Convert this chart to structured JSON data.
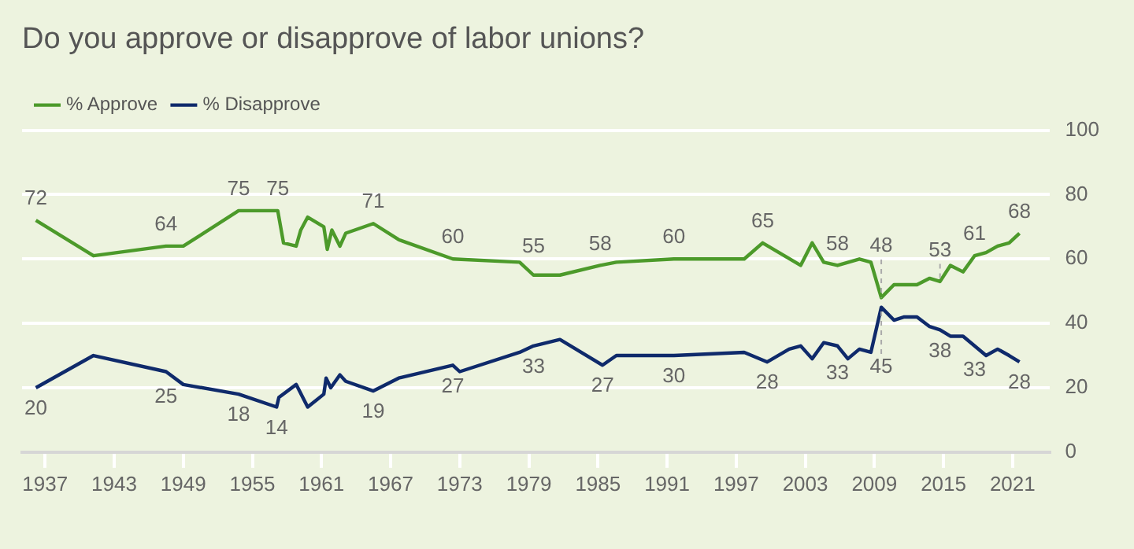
{
  "chart_data": {
    "type": "line",
    "title": "Do you approve or disapprove of labor unions?",
    "legend": "top left",
    "grid": "y",
    "marker": "none",
    "line_style": "solid",
    "xlim": [
      1935,
      2024.2
    ],
    "xticks": [
      1937,
      1943,
      1949,
      1955,
      1961,
      1967,
      1973,
      1979,
      1985,
      1991,
      1997,
      2003,
      2009,
      2015,
      2021
    ],
    "ylim": [
      0,
      100
    ],
    "yticks": [
      0,
      20,
      40,
      60,
      80,
      100
    ],
    "series": [
      {
        "name": "% Approve",
        "color": "#4c9a2a",
        "x": [
          1936.2,
          1941.2,
          1947.5,
          1949,
          1953.8,
          1957.2,
          1957.7,
          1958.8,
          1959.2,
          1959.8,
          1961.2,
          1961.5,
          1961.9,
          1962.6,
          1963.1,
          1965.5,
          1967.7,
          1972.4,
          1978.2,
          1979.4,
          1981.7,
          1985.2,
          1986.6,
          1991.6,
          1997.7,
          1999.3,
          2002.6,
          2003.6,
          2004.6,
          2005.8,
          2007.7,
          2008.7,
          2009.6,
          2010.7,
          2012.7,
          2013.8,
          2014.7,
          2015.6,
          2016.7,
          2017.7,
          2018.7,
          2019.7,
          2020.7,
          2021.6
        ],
        "values": [
          72,
          61,
          64,
          64,
          75,
          75,
          65,
          64,
          69,
          73,
          70,
          63,
          69,
          64,
          68,
          71,
          66,
          60,
          59,
          55,
          55,
          58,
          59,
          60,
          60,
          65,
          58,
          65,
          59,
          58,
          60,
          59,
          48,
          52,
          52,
          54,
          53,
          58,
          56,
          61,
          62,
          64,
          65,
          68
        ],
        "value_labels": [
          "72",
          null,
          "64",
          null,
          "75",
          "75",
          null,
          null,
          null,
          null,
          null,
          null,
          null,
          null,
          null,
          "71",
          null,
          "60",
          null,
          "55",
          null,
          "58",
          null,
          "60",
          null,
          "65",
          null,
          null,
          null,
          "58",
          null,
          null,
          "48",
          null,
          null,
          null,
          "53",
          null,
          null,
          "61",
          null,
          null,
          null,
          "68"
        ]
      },
      {
        "name": "% Disapprove",
        "color": "#0f2a6b",
        "x": [
          1936.2,
          1941.2,
          1947.5,
          1949,
          1953.8,
          1957.1,
          1957.3,
          1958.8,
          1959.8,
          1961.2,
          1961.4,
          1961.8,
          1962.6,
          1963.1,
          1965.5,
          1967.7,
          1972.4,
          1973,
          1978.2,
          1979.4,
          1981.7,
          1985.4,
          1986.6,
          1991.6,
          1997.7,
          1999.7,
          2001.6,
          2002.6,
          2003.6,
          2004.6,
          2005.8,
          2006.7,
          2007.7,
          2008.7,
          2009.6,
          2010.7,
          2011.6,
          2012.7,
          2013.8,
          2014.7,
          2015.6,
          2016.7,
          2017.7,
          2018.7,
          2019.7,
          2020.7,
          2021.6
        ],
        "values": [
          20,
          30,
          25,
          21,
          18,
          14,
          17,
          21,
          14,
          18,
          23,
          20,
          24,
          22,
          19,
          23,
          27,
          25,
          31,
          33,
          35,
          27,
          30,
          30,
          31,
          28,
          32,
          33,
          29,
          34,
          33,
          29,
          32,
          31,
          45,
          41,
          42,
          42,
          39,
          38,
          36,
          36,
          33,
          30,
          32,
          30,
          28
        ],
        "value_labels": [
          "20",
          null,
          "25",
          null,
          "18",
          "14",
          null,
          null,
          null,
          null,
          null,
          null,
          null,
          null,
          "19",
          null,
          "27",
          null,
          null,
          "33",
          null,
          "27",
          null,
          "30",
          null,
          "28",
          null,
          null,
          null,
          null,
          "33",
          null,
          null,
          null,
          "45",
          null,
          null,
          null,
          null,
          "38",
          null,
          null,
          "33",
          null,
          null,
          null,
          "28"
        ]
      }
    ]
  }
}
